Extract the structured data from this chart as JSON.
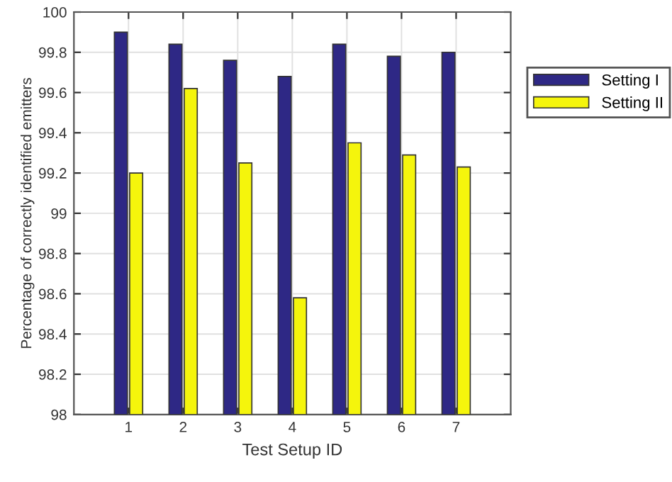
{
  "chart_data": {
    "type": "bar",
    "xlabel": "Test Setup ID",
    "ylabel": "Percentage of correctly identified emitters",
    "categories": [
      "1",
      "2",
      "3",
      "4",
      "5",
      "6",
      "7"
    ],
    "series": [
      {
        "name": "Setting I",
        "color": "#2e2885",
        "values": [
          99.9,
          99.84,
          99.76,
          99.68,
          99.84,
          99.78,
          99.8
        ]
      },
      {
        "name": "Setting II",
        "color": "#f5f50c",
        "values": [
          99.2,
          99.62,
          99.25,
          98.58,
          99.35,
          99.29,
          99.23
        ]
      }
    ],
    "ylim": [
      98,
      100
    ],
    "yticks": [
      98,
      98.2,
      98.4,
      98.6,
      98.8,
      99,
      99.2,
      99.4,
      99.6,
      99.8,
      100
    ],
    "grid": true,
    "legend": "right"
  }
}
